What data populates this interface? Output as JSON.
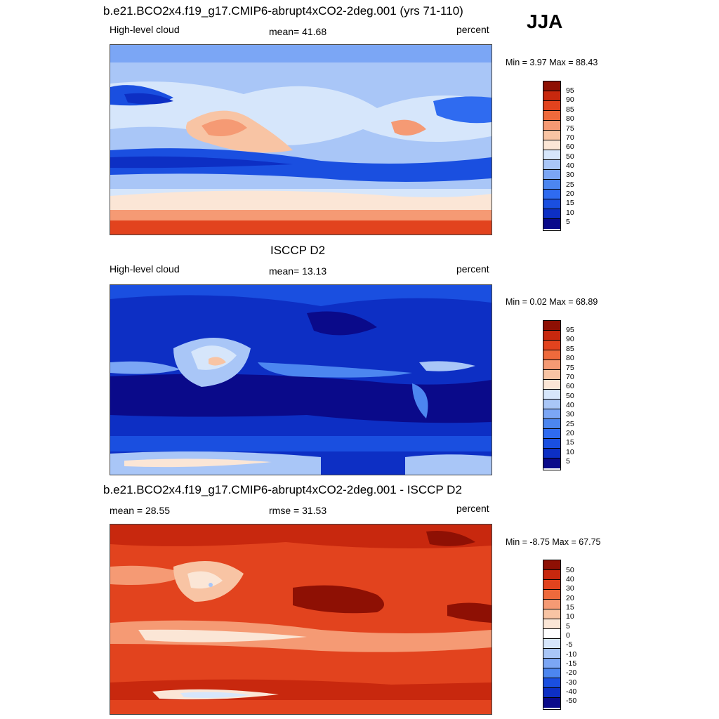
{
  "season": "JJA",
  "panels": [
    {
      "title": "b.e21.BCO2x4.f19_g17.CMIP6-abrupt4xCO2-2deg.001 (yrs 71-110)",
      "left_label": "High-level cloud",
      "center_label": "mean=  41.68",
      "right_label": "percent",
      "minmax": "Min =   3.97 Max =  88.43",
      "colorbar_labels": [
        "95",
        "90",
        "85",
        "80",
        "75",
        "70",
        "60",
        "50",
        "40",
        "30",
        "25",
        "20",
        "15",
        "10",
        "5"
      ]
    },
    {
      "title": "ISCCP D2",
      "left_label": "High-level cloud",
      "center_label": "mean=  13.13",
      "right_label": "percent",
      "minmax": "Min =   0.02 Max =  68.89",
      "colorbar_labels": [
        "95",
        "90",
        "85",
        "80",
        "75",
        "70",
        "60",
        "50",
        "40",
        "30",
        "25",
        "20",
        "15",
        "10",
        "5"
      ]
    },
    {
      "title": "b.e21.BCO2x4.f19_g17.CMIP6-abrupt4xCO2-2deg.001 - ISCCP D2",
      "left_label": "mean =  28.55",
      "center_label": "rmse =  31.53",
      "right_label": "percent",
      "minmax": "Min =  -8.75 Max =  67.75",
      "colorbar_labels": [
        "50",
        "40",
        "30",
        "20",
        "15",
        "10",
        "5",
        "0",
        "-5",
        "-10",
        "-15",
        "-20",
        "-30",
        "-40",
        "-50"
      ]
    }
  ],
  "colors": {
    "scale": [
      "#0a0a8a",
      "#0d2fc4",
      "#1a4fe0",
      "#2f6bf0",
      "#4c86f0",
      "#7ba6f5",
      "#a9c6f7",
      "#d6e6fb",
      "#fbe6d6",
      "#f8c4a4",
      "#f59a74",
      "#ee6a3c",
      "#e2431e",
      "#c8280e",
      "#8e1004"
    ]
  }
}
